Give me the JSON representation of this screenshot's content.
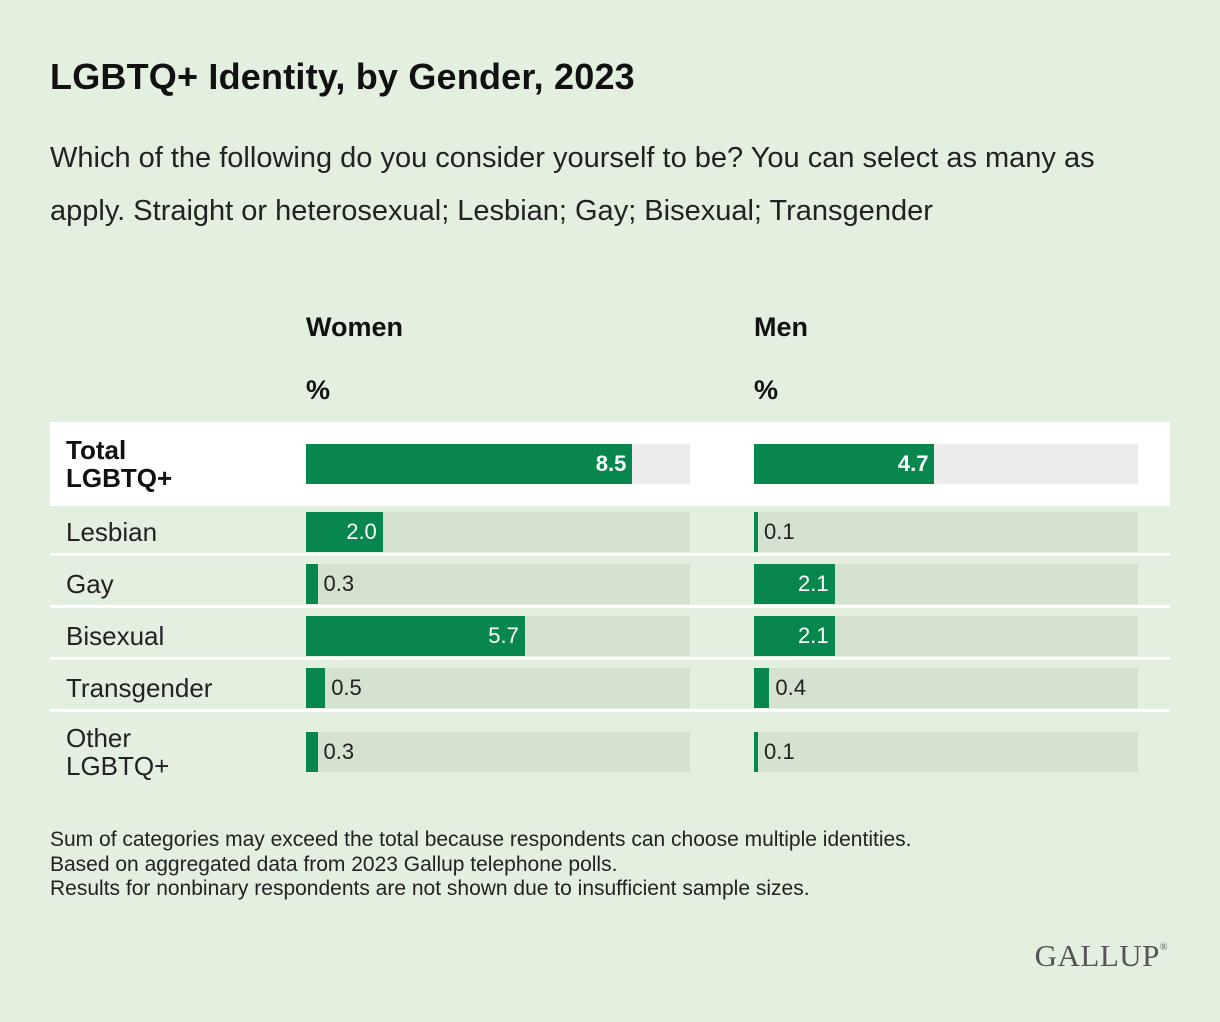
{
  "colors": {
    "background": "#e3f0e0",
    "bar": "#07874d",
    "track": "#d5e2d0",
    "total_track": "#ececec",
    "total_row": "#ffffff"
  },
  "logo": "GALLUP",
  "chart_data": {
    "type": "bar",
    "orientation": "horizontal",
    "title": "LGBTQ+ Identity, by Gender, 2023",
    "subtitle": "Which of the following do you consider yourself to be? You can select as many as apply. Straight or heterosexual; Lesbian; Gay; Bisexual; Transgender",
    "unit": "%",
    "categories": [
      "Total LGBTQ+",
      "Lesbian",
      "Gay",
      "Bisexual",
      "Transgender",
      "Other LGBTQ+"
    ],
    "category_lines": [
      [
        "Total",
        "LGBTQ+"
      ],
      [
        "Lesbian"
      ],
      [
        "Gay"
      ],
      [
        "Bisexual"
      ],
      [
        "Transgender"
      ],
      [
        "Other",
        "LGBTQ+"
      ]
    ],
    "series": [
      {
        "name": "Women",
        "values": [
          8.5,
          2.0,
          0.3,
          5.7,
          0.5,
          0.3
        ],
        "labels": [
          "8.5",
          "2.0",
          "0.3",
          "5.7",
          "0.5",
          "0.3"
        ]
      },
      {
        "name": "Men",
        "values": [
          4.7,
          0.1,
          2.1,
          2.1,
          0.4,
          0.1
        ],
        "labels": [
          "4.7",
          "0.1",
          "2.1",
          "2.1",
          "0.4",
          "0.1"
        ]
      }
    ],
    "xlim": [
      0,
      10
    ],
    "grid": false,
    "notes": [
      "Sum of categories may exceed the total because respondents can choose multiple identities.",
      "Based on aggregated data from 2023 Gallup telephone polls.",
      "Results for nonbinary respondents are not shown due to insufficient sample sizes."
    ]
  }
}
